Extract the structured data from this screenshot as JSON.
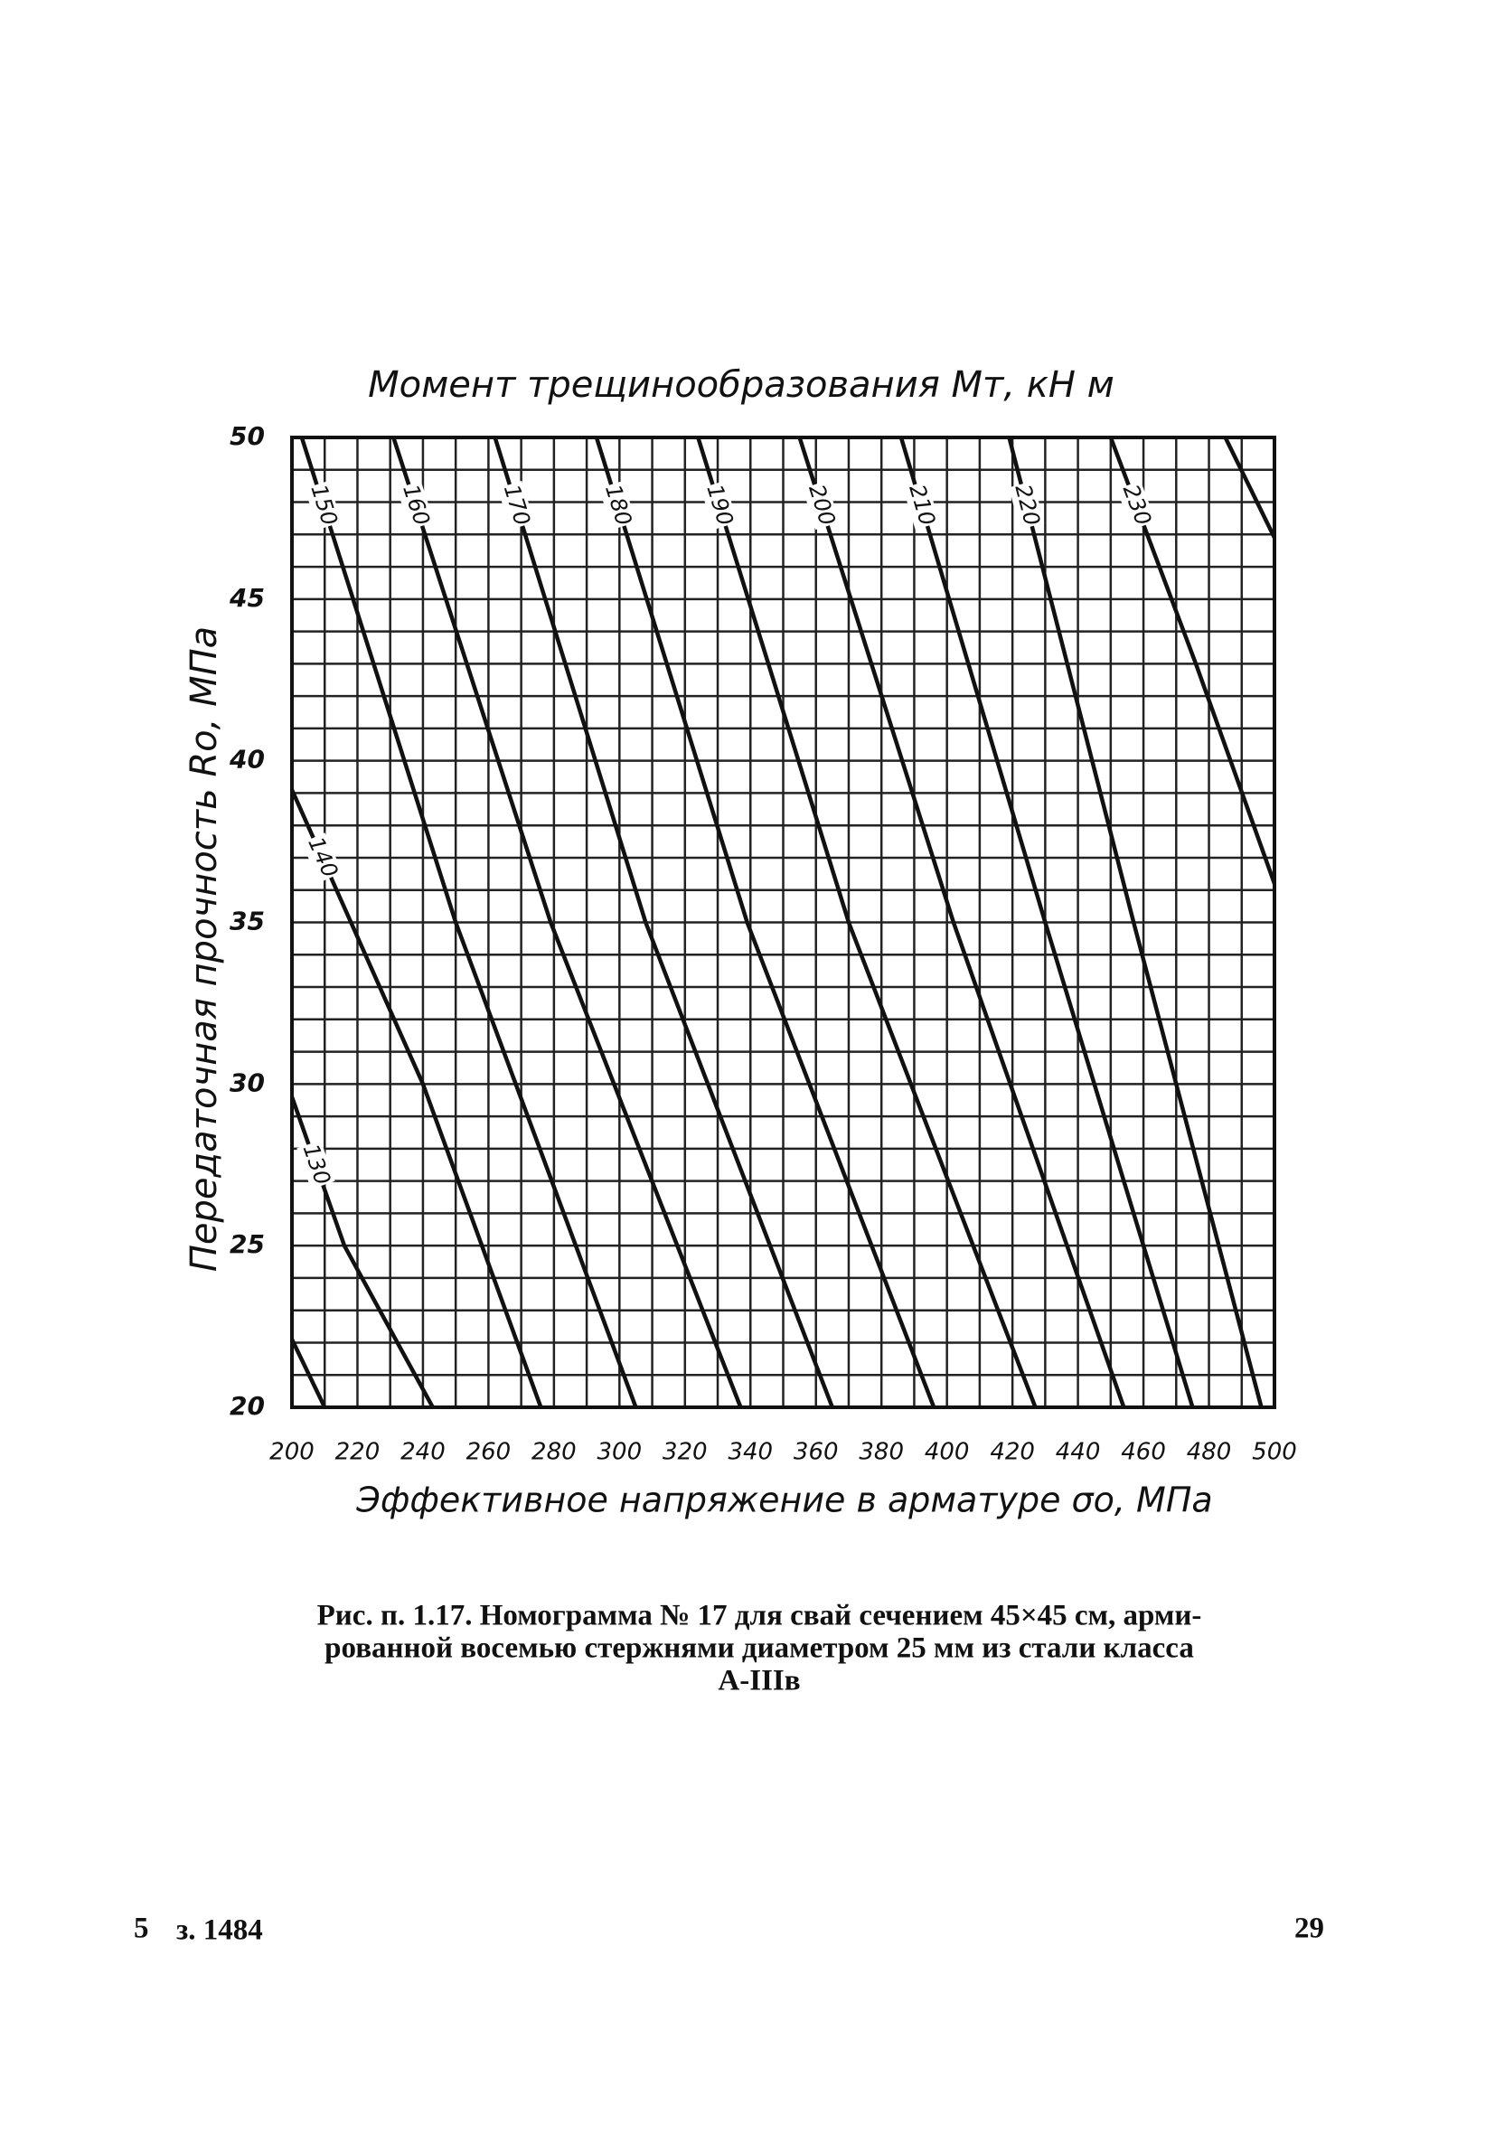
{
  "chart_data": {
    "type": "line",
    "title": "Момент трещинообразования Мт, кН м",
    "xlabel": "Эффективное напряжение в арматуре σо, МПа",
    "ylabel": "Передаточная прочность Rо, МПа",
    "xlim": [
      200,
      500
    ],
    "ylim": [
      20,
      50
    ],
    "xticks": [
      200,
      220,
      240,
      260,
      280,
      300,
      320,
      340,
      360,
      380,
      400,
      420,
      440,
      460,
      480,
      500
    ],
    "yticks": [
      20,
      25,
      30,
      35,
      40,
      45,
      50
    ],
    "xgrid": [
      200,
      210,
      220,
      230,
      240,
      250,
      260,
      270,
      280,
      290,
      300,
      310,
      320,
      330,
      340,
      350,
      360,
      370,
      380,
      390,
      400,
      410,
      420,
      430,
      440,
      450,
      460,
      470,
      480,
      490,
      500
    ],
    "ygrid": [
      20,
      21,
      22,
      23,
      24,
      25,
      26,
      27,
      28,
      29,
      30,
      31,
      32,
      33,
      34,
      35,
      36,
      37,
      38,
      39,
      40,
      41,
      42,
      43,
      44,
      45,
      46,
      47,
      48,
      49,
      50
    ],
    "grid": true,
    "color": "#111111",
    "series": [
      {
        "x": [
          200,
          210
        ],
        "values": [
          22.1,
          20
        ]
      },
      {
        "name": "130",
        "x": [
          200,
          216,
          243
        ],
        "values": [
          29.6,
          25,
          20
        ]
      },
      {
        "name": "140",
        "x": [
          200,
          240,
          276
        ],
        "values": [
          39.1,
          30,
          20
        ]
      },
      {
        "name": "150",
        "x": [
          203,
          250,
          305
        ],
        "values": [
          50,
          35,
          20
        ]
      },
      {
        "name": "160",
        "x": [
          231,
          279,
          337
        ],
        "values": [
          50,
          35,
          20
        ]
      },
      {
        "name": "170",
        "x": [
          262,
          308,
          365
        ],
        "values": [
          50,
          35,
          20
        ]
      },
      {
        "name": "180",
        "x": [
          293,
          339,
          396
        ],
        "values": [
          50,
          35,
          20
        ]
      },
      {
        "name": "190",
        "x": [
          324,
          370,
          427
        ],
        "values": [
          50,
          35,
          20
        ]
      },
      {
        "name": "200",
        "x": [
          355,
          402,
          454
        ],
        "values": [
          50,
          35,
          20
        ]
      },
      {
        "name": "210",
        "x": [
          386,
          430,
          475
        ],
        "values": [
          50,
          35,
          20
        ]
      },
      {
        "name": "220",
        "x": [
          419,
          457,
          496
        ],
        "values": [
          50,
          35,
          20
        ]
      },
      {
        "name": "230",
        "x": [
          450,
          476,
          500
        ],
        "values": [
          50,
          43,
          36.2
        ]
      },
      {
        "x": [
          485,
          500
        ],
        "values": [
          50,
          46.9
        ]
      }
    ]
  },
  "caption": [
    "Рис. п. 1.17. Номограмма № 17 для свай сечением 45×45 см, арми-",
    "рованной восемью стержнями диаметром 25 мм из стали класса",
    "А-IIIв"
  ],
  "footer": {
    "sheet": "5",
    "order": "з. 1484",
    "page": "29"
  }
}
